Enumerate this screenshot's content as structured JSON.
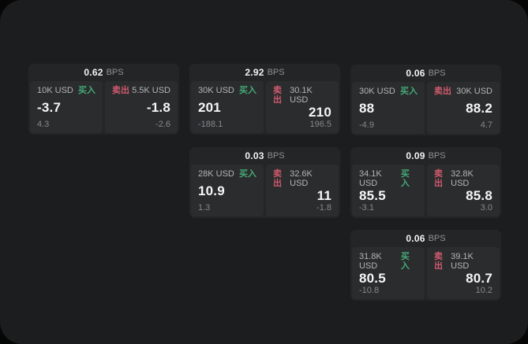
{
  "colors": {
    "window_bg": "#1c1d1e",
    "card_bg": "#242526",
    "tile_bg": "#2b2c2d",
    "buy_green": "#44aa78",
    "sell_red": "#cf5a6e",
    "text_primary": "#f5f6f7",
    "text_secondary": "#b3b4b7",
    "text_muted": "#87888c"
  },
  "labels": {
    "bps_unit": "BPS",
    "buy": "买入",
    "sell": "卖出"
  },
  "cards": [
    {
      "bps": "0.62",
      "buy": {
        "size": "10K USD",
        "price": "-3.7",
        "delta": "4.3"
      },
      "sell": {
        "size": "5.5K USD",
        "price": "-1.8",
        "delta": "-2.6"
      }
    },
    {
      "bps": "2.92",
      "buy": {
        "size": "30K USD",
        "price": "201",
        "delta": "-188.1"
      },
      "sell": {
        "size": "30.1K USD",
        "price": "210",
        "delta": "196.5"
      }
    },
    {
      "bps": "0.06",
      "buy": {
        "size": "30K USD",
        "price": "88",
        "delta": "-4.9"
      },
      "sell": {
        "size": "30K USD",
        "price": "88.2",
        "delta": "4.7"
      }
    },
    {
      "bps": "0.03",
      "buy": {
        "size": "28K USD",
        "price": "10.9",
        "delta": "1.3"
      },
      "sell": {
        "size": "32.6K USD",
        "price": "11",
        "delta": "-1.8"
      }
    },
    {
      "bps": "0.09",
      "buy": {
        "size": "34.1K USD",
        "price": "85.5",
        "delta": "-3.1"
      },
      "sell": {
        "size": "32.8K USD",
        "price": "85.8",
        "delta": "3.0"
      }
    },
    {
      "bps": "0.06",
      "buy": {
        "size": "31.8K USD",
        "price": "80.5",
        "delta": "-10.8"
      },
      "sell": {
        "size": "39.1K USD",
        "price": "80.7",
        "delta": "10.2"
      }
    }
  ]
}
